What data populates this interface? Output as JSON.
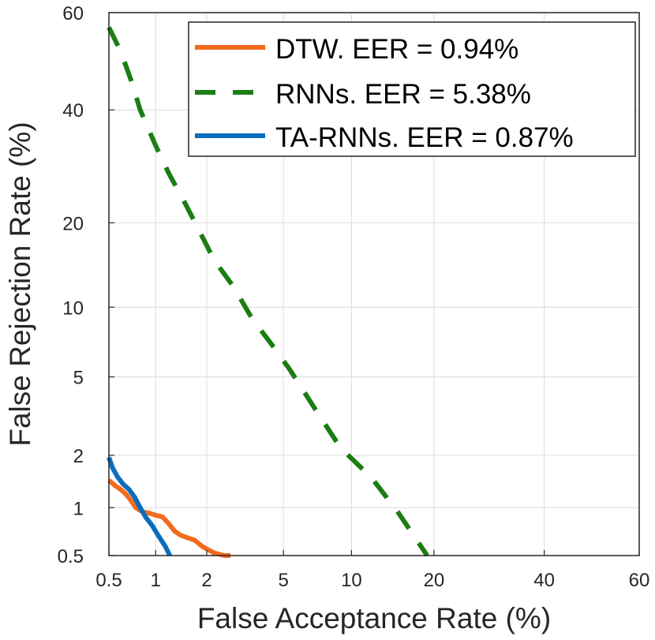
{
  "chart_data": {
    "type": "line",
    "title": "",
    "xlabel": "False Acceptance Rate (%)",
    "ylabel": "False Rejection Rate (%)",
    "x_scale": "normal-deviate (DET)",
    "y_scale": "normal-deviate (DET)",
    "xlim": [
      0.5,
      60
    ],
    "ylim": [
      0.5,
      60
    ],
    "x_ticks": [
      0.5,
      1,
      2,
      5,
      10,
      20,
      40,
      60
    ],
    "x_tick_labels": [
      "0.5",
      "1",
      "2",
      "5",
      "10",
      "20",
      "40",
      "60"
    ],
    "y_ticks": [
      0.5,
      1,
      2,
      5,
      10,
      20,
      40,
      60
    ],
    "y_tick_labels": [
      "0.5",
      "1",
      "2",
      "5",
      "10",
      "20",
      "40",
      "60"
    ],
    "grid": true,
    "legend_position": "top-right",
    "series": [
      {
        "name": "DTW. EER = 0.94%",
        "color": "#F26B1D",
        "style": "solid",
        "x": [
          0.5,
          0.55,
          0.6,
          0.65,
          0.7,
          0.75,
          0.8,
          0.85,
          0.9,
          1.0,
          1.1,
          1.2,
          1.3,
          1.4,
          1.5,
          1.7,
          1.9,
          2.2,
          2.5,
          2.7
        ],
        "y": [
          1.45,
          1.35,
          1.28,
          1.2,
          1.1,
          1.0,
          0.96,
          0.94,
          0.93,
          0.9,
          0.88,
          0.8,
          0.72,
          0.68,
          0.66,
          0.63,
          0.57,
          0.52,
          0.5,
          0.5
        ]
      },
      {
        "name": "RNNs. EER = 5.38%",
        "color": "#1B7D12",
        "style": "dashed",
        "x": [
          0.5,
          0.6,
          0.7,
          0.8,
          1.0,
          1.2,
          1.5,
          1.8,
          2.2,
          2.8,
          3.5,
          4.5,
          5.38,
          7.0,
          9.0,
          12.0,
          15.0,
          19.0
        ],
        "y": [
          57,
          52,
          46,
          40,
          33,
          28,
          23,
          19,
          15,
          12,
          9,
          6.8,
          5.38,
          3.5,
          2.2,
          1.5,
          0.95,
          0.5
        ]
      },
      {
        "name": "TA-RNNs. EER = 0.87%",
        "color": "#0B6EBD",
        "style": "solid",
        "x": [
          0.5,
          0.53,
          0.57,
          0.62,
          0.68,
          0.74,
          0.8,
          0.87,
          0.95,
          1.05,
          1.15,
          1.22
        ],
        "y": [
          1.95,
          1.7,
          1.52,
          1.38,
          1.28,
          1.15,
          1.0,
          0.87,
          0.78,
          0.66,
          0.57,
          0.5
        ]
      }
    ]
  }
}
